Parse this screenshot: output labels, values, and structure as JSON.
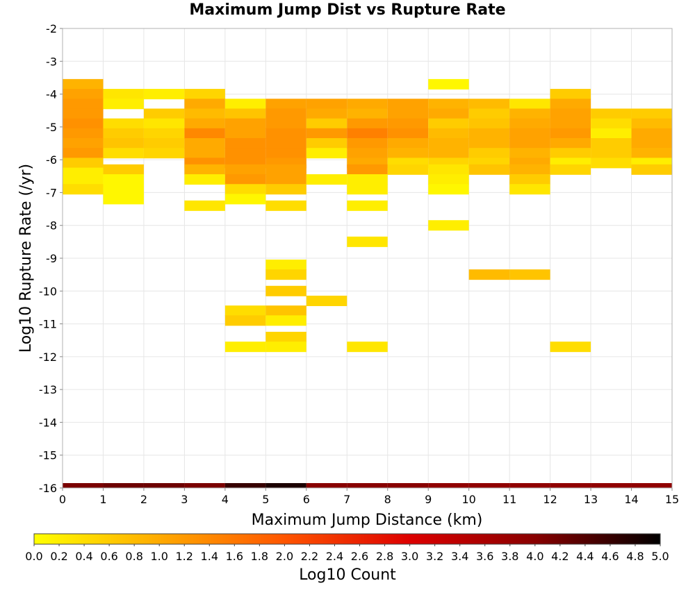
{
  "chart_data": {
    "type": "heatmap",
    "title": "Maximum Jump Dist vs Rupture Rate",
    "xlabel": "Maximum Jump Distance (km)",
    "ylabel": "Log10 Rupture Rate (/yr)",
    "xlim": [
      0,
      15
    ],
    "ylim": [
      -16,
      -2
    ],
    "x_ticks": [
      "0",
      "1",
      "2",
      "3",
      "4",
      "5",
      "6",
      "7",
      "8",
      "9",
      "10",
      "11",
      "12",
      "13",
      "14",
      "15"
    ],
    "y_ticks": [
      "-2",
      "-3",
      "-4",
      "-5",
      "-6",
      "-7",
      "-8",
      "-9",
      "-10",
      "-11",
      "-12",
      "-13",
      "-14",
      "-15",
      "-16"
    ],
    "grid": true,
    "colorbar": {
      "label": "Log10 Count",
      "min": 0,
      "max": 5,
      "ticks": [
        "0.0",
        "0.2",
        "0.4",
        "0.6",
        "0.8",
        "1.0",
        "1.2",
        "1.4",
        "1.6",
        "1.8",
        "2.0",
        "2.2",
        "2.4",
        "2.6",
        "2.8",
        "3.0",
        "3.2",
        "3.4",
        "3.6",
        "3.8",
        "4.0",
        "4.2",
        "4.4",
        "4.6",
        "4.8",
        "5.0"
      ],
      "colors": [
        "#ffff00",
        "#ffaa00",
        "#ff5500",
        "#dd0000",
        "#880000",
        "#000000"
      ]
    },
    "marginal_row": {
      "y": -16,
      "values": [
        4.1,
        4.2,
        4.2,
        4.1,
        4.6,
        4.8,
        4.0,
        4.0,
        4.0,
        3.9,
        3.9,
        3.9,
        3.9,
        3.9,
        3.9
      ]
    },
    "cells": [
      {
        "x": 0,
        "y": -3.7,
        "v": 0.9
      },
      {
        "x": 0,
        "y": -4.0,
        "v": 1.1
      },
      {
        "x": 0,
        "y": -4.3,
        "v": 1.2
      },
      {
        "x": 0,
        "y": -4.6,
        "v": 1.2
      },
      {
        "x": 0,
        "y": -4.9,
        "v": 1.3
      },
      {
        "x": 0,
        "y": -5.2,
        "v": 1.2
      },
      {
        "x": 0,
        "y": -5.5,
        "v": 1.1
      },
      {
        "x": 0,
        "y": -5.8,
        "v": 1.2
      },
      {
        "x": 0,
        "y": -6.1,
        "v": 0.6
      },
      {
        "x": 0,
        "y": -6.4,
        "v": 0.2
      },
      {
        "x": 0,
        "y": -6.7,
        "v": 0.2
      },
      {
        "x": 0,
        "y": -6.9,
        "v": 0.4
      },
      {
        "x": 1,
        "y": -4.0,
        "v": 0.3
      },
      {
        "x": 1,
        "y": -4.3,
        "v": 0.2
      },
      {
        "x": 1,
        "y": -4.9,
        "v": 0.4
      },
      {
        "x": 1,
        "y": -5.2,
        "v": 0.6
      },
      {
        "x": 1,
        "y": -5.5,
        "v": 0.7
      },
      {
        "x": 1,
        "y": -5.8,
        "v": 0.4
      },
      {
        "x": 1,
        "y": -6.3,
        "v": 0.6
      },
      {
        "x": 1,
        "y": -6.6,
        "v": 0.1
      },
      {
        "x": 1,
        "y": -6.9,
        "v": 0.1
      },
      {
        "x": 1,
        "y": -7.2,
        "v": 0.1
      },
      {
        "x": 2,
        "y": -4.0,
        "v": 0.2
      },
      {
        "x": 2,
        "y": -4.6,
        "v": 0.6
      },
      {
        "x": 2,
        "y": -4.9,
        "v": 0.3
      },
      {
        "x": 2,
        "y": -5.2,
        "v": 0.5
      },
      {
        "x": 2,
        "y": -5.5,
        "v": 0.6
      },
      {
        "x": 2,
        "y": -5.8,
        "v": 0.5
      },
      {
        "x": 3,
        "y": -4.0,
        "v": 0.5
      },
      {
        "x": 3,
        "y": -4.3,
        "v": 1.0
      },
      {
        "x": 3,
        "y": -4.6,
        "v": 0.8
      },
      {
        "x": 3,
        "y": -4.9,
        "v": 1.0
      },
      {
        "x": 3,
        "y": -5.2,
        "v": 1.4
      },
      {
        "x": 3,
        "y": -5.5,
        "v": 1.0
      },
      {
        "x": 3,
        "y": -5.8,
        "v": 1.0
      },
      {
        "x": 3,
        "y": -6.1,
        "v": 1.3
      },
      {
        "x": 3,
        "y": -6.3,
        "v": 0.9
      },
      {
        "x": 3,
        "y": -6.6,
        "v": 0.2
      },
      {
        "x": 3,
        "y": -7.4,
        "v": 0.3
      },
      {
        "x": 4,
        "y": -4.3,
        "v": 0.2
      },
      {
        "x": 4,
        "y": -4.6,
        "v": 0.7
      },
      {
        "x": 4,
        "y": -4.9,
        "v": 1.1
      },
      {
        "x": 4,
        "y": -5.2,
        "v": 1.1
      },
      {
        "x": 4,
        "y": -5.5,
        "v": 1.3
      },
      {
        "x": 4,
        "y": -5.8,
        "v": 1.3
      },
      {
        "x": 4,
        "y": -6.1,
        "v": 1.3
      },
      {
        "x": 4,
        "y": -6.3,
        "v": 1.1
      },
      {
        "x": 4,
        "y": -6.6,
        "v": 1.2
      },
      {
        "x": 4,
        "y": -6.9,
        "v": 0.4
      },
      {
        "x": 4,
        "y": -7.2,
        "v": 0.1
      },
      {
        "x": 4,
        "y": -10.6,
        "v": 0.4
      },
      {
        "x": 4,
        "y": -10.9,
        "v": 0.6
      },
      {
        "x": 4,
        "y": -11.7,
        "v": 0.2
      },
      {
        "x": 5,
        "y": -4.3,
        "v": 1.1
      },
      {
        "x": 5,
        "y": -4.6,
        "v": 1.2
      },
      {
        "x": 5,
        "y": -4.9,
        "v": 1.2
      },
      {
        "x": 5,
        "y": -5.2,
        "v": 1.3
      },
      {
        "x": 5,
        "y": -5.5,
        "v": 1.3
      },
      {
        "x": 5,
        "y": -5.8,
        "v": 1.3
      },
      {
        "x": 5,
        "y": -6.1,
        "v": 1.2
      },
      {
        "x": 5,
        "y": -6.3,
        "v": 1.1
      },
      {
        "x": 5,
        "y": -6.6,
        "v": 1.1
      },
      {
        "x": 5,
        "y": -6.9,
        "v": 0.6
      },
      {
        "x": 5,
        "y": -7.4,
        "v": 0.4
      },
      {
        "x": 5,
        "y": -9.2,
        "v": 0.2
      },
      {
        "x": 5,
        "y": -9.5,
        "v": 0.5
      },
      {
        "x": 5,
        "y": -10.0,
        "v": 0.6
      },
      {
        "x": 5,
        "y": -10.6,
        "v": 0.7
      },
      {
        "x": 5,
        "y": -10.9,
        "v": 0.2
      },
      {
        "x": 5,
        "y": -11.4,
        "v": 0.5
      },
      {
        "x": 5,
        "y": -11.7,
        "v": 0.2
      },
      {
        "x": 6,
        "y": -4.3,
        "v": 1.1
      },
      {
        "x": 6,
        "y": -4.6,
        "v": 1.0
      },
      {
        "x": 6,
        "y": -4.9,
        "v": 0.6
      },
      {
        "x": 6,
        "y": -5.2,
        "v": 1.2
      },
      {
        "x": 6,
        "y": -5.5,
        "v": 0.6
      },
      {
        "x": 6,
        "y": -5.8,
        "v": 0.2
      },
      {
        "x": 6,
        "y": -6.6,
        "v": 0.2
      },
      {
        "x": 6,
        "y": -10.3,
        "v": 0.5
      },
      {
        "x": 7,
        "y": -4.3,
        "v": 1.0
      },
      {
        "x": 7,
        "y": -4.6,
        "v": 0.9
      },
      {
        "x": 7,
        "y": -4.9,
        "v": 1.2
      },
      {
        "x": 7,
        "y": -5.2,
        "v": 1.5
      },
      {
        "x": 7,
        "y": -5.5,
        "v": 1.2
      },
      {
        "x": 7,
        "y": -5.8,
        "v": 1.1
      },
      {
        "x": 7,
        "y": -6.1,
        "v": 1.0
      },
      {
        "x": 7,
        "y": -6.3,
        "v": 1.2
      },
      {
        "x": 7,
        "y": -6.6,
        "v": 0.2
      },
      {
        "x": 7,
        "y": -6.9,
        "v": 0.2
      },
      {
        "x": 7,
        "y": -7.4,
        "v": 0.2
      },
      {
        "x": 7,
        "y": -8.5,
        "v": 0.3
      },
      {
        "x": 7,
        "y": -11.7,
        "v": 0.3
      },
      {
        "x": 8,
        "y": -4.3,
        "v": 1.1
      },
      {
        "x": 8,
        "y": -4.6,
        "v": 1.1
      },
      {
        "x": 8,
        "y": -4.9,
        "v": 1.2
      },
      {
        "x": 8,
        "y": -5.2,
        "v": 1.3
      },
      {
        "x": 8,
        "y": -5.5,
        "v": 1.0
      },
      {
        "x": 8,
        "y": -5.8,
        "v": 0.9
      },
      {
        "x": 8,
        "y": -6.1,
        "v": 0.4
      },
      {
        "x": 8,
        "y": -6.3,
        "v": 0.5
      },
      {
        "x": 9,
        "y": -3.7,
        "v": 0.1
      },
      {
        "x": 9,
        "y": -4.3,
        "v": 0.9
      },
      {
        "x": 9,
        "y": -4.6,
        "v": 1.0
      },
      {
        "x": 9,
        "y": -4.9,
        "v": 0.6
      },
      {
        "x": 9,
        "y": -5.2,
        "v": 0.8
      },
      {
        "x": 9,
        "y": -5.5,
        "v": 0.9
      },
      {
        "x": 9,
        "y": -5.8,
        "v": 0.9
      },
      {
        "x": 9,
        "y": -6.1,
        "v": 0.5
      },
      {
        "x": 9,
        "y": -6.3,
        "v": 0.3
      },
      {
        "x": 9,
        "y": -6.6,
        "v": 0.2
      },
      {
        "x": 9,
        "y": -6.9,
        "v": 0.1
      },
      {
        "x": 9,
        "y": -8.0,
        "v": 0.2
      },
      {
        "x": 10,
        "y": -4.3,
        "v": 0.8
      },
      {
        "x": 10,
        "y": -4.6,
        "v": 0.6
      },
      {
        "x": 10,
        "y": -4.9,
        "v": 0.7
      },
      {
        "x": 10,
        "y": -5.2,
        "v": 0.9
      },
      {
        "x": 10,
        "y": -5.5,
        "v": 0.9
      },
      {
        "x": 10,
        "y": -5.8,
        "v": 0.6
      },
      {
        "x": 10,
        "y": -6.1,
        "v": 0.5
      },
      {
        "x": 10,
        "y": -6.3,
        "v": 0.7
      },
      {
        "x": 10,
        "y": -9.5,
        "v": 0.8
      },
      {
        "x": 11,
        "y": -4.3,
        "v": 0.3
      },
      {
        "x": 11,
        "y": -4.6,
        "v": 0.9
      },
      {
        "x": 11,
        "y": -4.9,
        "v": 1.0
      },
      {
        "x": 11,
        "y": -5.2,
        "v": 1.1
      },
      {
        "x": 11,
        "y": -5.5,
        "v": 1.1
      },
      {
        "x": 11,
        "y": -5.8,
        "v": 0.9
      },
      {
        "x": 11,
        "y": -6.1,
        "v": 1.0
      },
      {
        "x": 11,
        "y": -6.3,
        "v": 0.9
      },
      {
        "x": 11,
        "y": -6.6,
        "v": 0.6
      },
      {
        "x": 11,
        "y": -6.9,
        "v": 0.3
      },
      {
        "x": 11,
        "y": -9.5,
        "v": 0.7
      },
      {
        "x": 12,
        "y": -4.0,
        "v": 0.6
      },
      {
        "x": 12,
        "y": -4.3,
        "v": 1.0
      },
      {
        "x": 12,
        "y": -4.6,
        "v": 1.1
      },
      {
        "x": 12,
        "y": -4.9,
        "v": 1.1
      },
      {
        "x": 12,
        "y": -5.2,
        "v": 1.2
      },
      {
        "x": 12,
        "y": -5.5,
        "v": 1.0
      },
      {
        "x": 12,
        "y": -5.8,
        "v": 0.6
      },
      {
        "x": 12,
        "y": -6.1,
        "v": 0.2
      },
      {
        "x": 12,
        "y": -6.3,
        "v": 0.5
      },
      {
        "x": 12,
        "y": -11.7,
        "v": 0.4
      },
      {
        "x": 13,
        "y": -4.6,
        "v": 0.6
      },
      {
        "x": 13,
        "y": -4.9,
        "v": 0.4
      },
      {
        "x": 13,
        "y": -5.2,
        "v": 0.2
      },
      {
        "x": 13,
        "y": -5.5,
        "v": 0.6
      },
      {
        "x": 13,
        "y": -5.8,
        "v": 0.6
      },
      {
        "x": 13,
        "y": -6.1,
        "v": 0.4
      },
      {
        "x": 14,
        "y": -4.6,
        "v": 0.6
      },
      {
        "x": 14,
        "y": -4.9,
        "v": 0.8
      },
      {
        "x": 14,
        "y": -5.2,
        "v": 1.0
      },
      {
        "x": 14,
        "y": -5.5,
        "v": 1.0
      },
      {
        "x": 14,
        "y": -5.8,
        "v": 0.9
      },
      {
        "x": 14,
        "y": -6.1,
        "v": 0.2
      },
      {
        "x": 14,
        "y": -6.3,
        "v": 0.6
      }
    ]
  }
}
